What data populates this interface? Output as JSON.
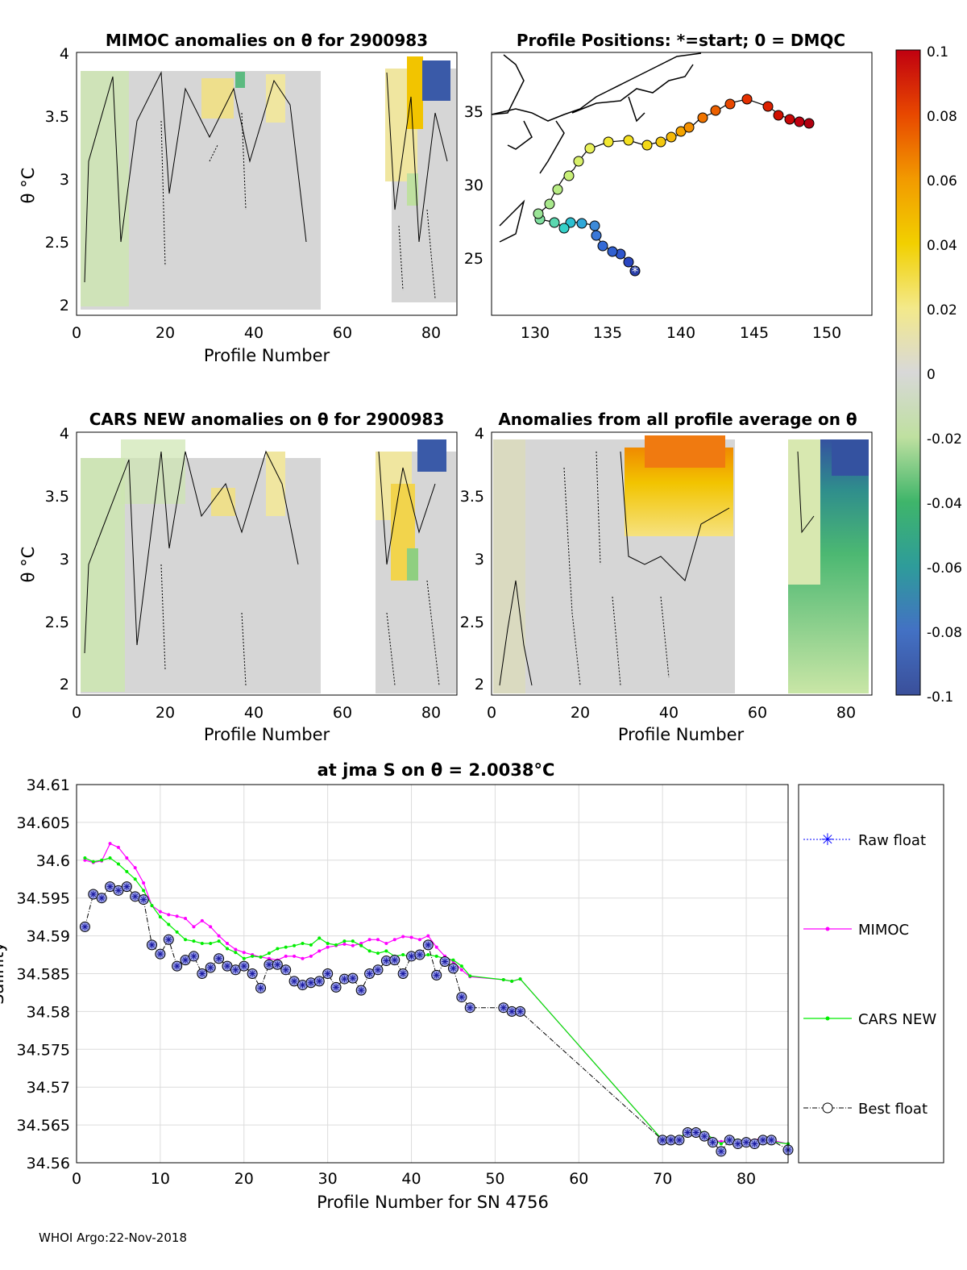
{
  "footer": "WHOI Argo:22-Nov-2018",
  "colors": {
    "mimoc": "#ff00ff",
    "cars": "#00ee00",
    "raw": "#0000ff",
    "best": "#000000",
    "grid": "#dcdcdc",
    "contour": "#000000"
  },
  "panels": {
    "mimoc": {
      "title": "MIMOC anomalies on θ  for 2900983",
      "xlabel": "Profile Number",
      "ylabel": "θ °C",
      "xticks": [
        "0",
        "20",
        "40",
        "60",
        "80"
      ],
      "yticks": [
        "2",
        "2.5",
        "3",
        "3.5",
        "4"
      ]
    },
    "positions": {
      "title": "Profile Positions: *=start; 0 = DMQC",
      "xticks": [
        "130",
        "135",
        "140",
        "145",
        "150"
      ],
      "yticks": [
        "25",
        "30",
        "35"
      ]
    },
    "cars": {
      "title": "CARS NEW anomalies on θ for 2900983",
      "xlabel": "Profile Number",
      "ylabel": "θ °C",
      "xticks": [
        "0",
        "20",
        "40",
        "60",
        "80"
      ],
      "yticks": [
        "2",
        "2.5",
        "3",
        "3.5",
        "4"
      ]
    },
    "profile_avg": {
      "title": "Anomalies from all profile average on θ",
      "xlabel": "Profile Number",
      "xticks": [
        "0",
        "20",
        "40",
        "60",
        "80"
      ],
      "yticks": [
        "2",
        "2.5",
        "3",
        "3.5",
        "4"
      ]
    },
    "colorbar": {
      "ticks": [
        "0.1",
        "0.08",
        "0.06",
        "0.04",
        "0.02",
        "0",
        "-0.02",
        "-0.04",
        "-0.06",
        "-0.08",
        "-0.1"
      ]
    }
  },
  "chart_data": [
    {
      "type": "line",
      "title": "at jma S on θ = 2.0038°C",
      "xlabel": "Profile Number for SN 4756",
      "ylabel": "Salinity",
      "xlim": [
        0,
        85
      ],
      "ylim": [
        34.56,
        34.61
      ],
      "xticks": [
        "0",
        "10",
        "20",
        "30",
        "40",
        "50",
        "60",
        "70",
        "80"
      ],
      "yticks": [
        "34.56",
        "34.565",
        "34.57",
        "34.575",
        "34.58",
        "34.585",
        "34.59",
        "34.595",
        "34.6",
        "34.605",
        "34.61"
      ],
      "legend": [
        "Raw float",
        "MIMOC",
        "CARS NEW",
        "Best float"
      ],
      "legend_position": "outside-right",
      "grid": true,
      "series": [
        {
          "name": "Best float",
          "x": [
            1,
            2,
            3,
            4,
            5,
            6,
            7,
            8,
            9,
            10,
            11,
            12,
            13,
            14,
            15,
            16,
            17,
            18,
            19,
            20,
            21,
            22,
            23,
            24,
            25,
            26,
            27,
            28,
            29,
            30,
            31,
            32,
            33,
            34,
            35,
            36,
            37,
            38,
            39,
            40,
            41,
            42,
            43,
            44,
            45,
            46,
            47,
            51,
            52,
            53,
            70,
            71,
            72,
            73,
            74,
            75,
            76,
            77,
            78,
            79,
            80,
            81,
            82,
            83,
            85
          ],
          "y": [
            34.5912,
            34.5955,
            34.595,
            34.5965,
            34.596,
            34.5965,
            34.5952,
            34.5948,
            34.5888,
            34.5876,
            34.5895,
            34.586,
            34.5868,
            34.5873,
            34.585,
            34.5858,
            34.587,
            34.586,
            34.5855,
            34.586,
            34.585,
            34.5831,
            34.5862,
            34.5862,
            34.5855,
            34.584,
            34.5835,
            34.5838,
            34.584,
            34.585,
            34.5832,
            34.5843,
            34.5844,
            34.5828,
            34.585,
            34.5855,
            34.5867,
            34.5868,
            34.585,
            34.5873,
            34.5875,
            34.5888,
            34.5848,
            34.5866,
            34.5857,
            34.5819,
            34.5805,
            34.5805,
            34.58,
            34.58,
            34.563,
            34.563,
            34.563,
            34.564,
            34.564,
            34.5635,
            34.5627,
            34.5615,
            34.563,
            34.5625,
            34.5627,
            34.5625,
            34.563,
            34.563,
            34.5617
          ]
        },
        {
          "name": "MIMOC",
          "x": [
            1,
            2,
            3,
            4,
            5,
            6,
            7,
            8,
            9,
            10,
            11,
            12,
            13,
            14,
            15,
            16,
            17,
            18,
            19,
            20,
            21,
            22,
            23,
            24,
            25,
            26,
            27,
            28,
            29,
            30,
            31,
            32,
            33,
            34,
            35,
            36,
            37,
            38,
            39,
            40,
            41,
            42,
            43,
            44,
            45,
            46,
            47,
            51,
            52,
            53,
            70,
            71,
            72,
            73,
            74,
            75,
            76,
            77,
            78,
            79,
            80,
            81,
            82,
            83,
            85
          ],
          "y": [
            34.6,
            34.5997,
            34.5999,
            34.6022,
            34.6017,
            34.6003,
            34.599,
            34.597,
            34.594,
            34.5932,
            34.5928,
            34.5926,
            34.5923,
            34.5912,
            34.592,
            34.5912,
            34.59,
            34.589,
            34.5882,
            34.5878,
            34.5875,
            34.5872,
            34.587,
            34.5868,
            34.5873,
            34.5873,
            34.587,
            34.5873,
            34.588,
            34.5885,
            34.5887,
            34.5889,
            34.5887,
            34.589,
            34.5895,
            34.5895,
            34.589,
            34.5895,
            34.5899,
            34.5898,
            34.5895,
            34.59,
            34.5885,
            34.5873,
            34.5866,
            34.5855,
            34.5846,
            34.5842,
            34.584,
            34.5843,
            34.563,
            34.563,
            34.5632,
            34.564,
            34.564,
            34.5638,
            34.563,
            34.5628,
            34.563,
            34.5628,
            34.563,
            34.563,
            34.5633,
            34.563,
            34.5625
          ]
        },
        {
          "name": "CARS NEW",
          "x": [
            1,
            2,
            3,
            4,
            5,
            6,
            7,
            8,
            9,
            10,
            11,
            12,
            13,
            14,
            15,
            16,
            17,
            18,
            19,
            20,
            21,
            22,
            23,
            24,
            25,
            26,
            27,
            28,
            29,
            30,
            31,
            32,
            33,
            34,
            35,
            36,
            37,
            38,
            39,
            40,
            41,
            42,
            43,
            44,
            45,
            46,
            47,
            51,
            52,
            53,
            70,
            71,
            72,
            73,
            74,
            75,
            76,
            77,
            78,
            79,
            80,
            81,
            82,
            83,
            85
          ],
          "y": [
            34.6003,
            34.5998,
            34.6,
            34.6003,
            34.5995,
            34.5985,
            34.5975,
            34.596,
            34.594,
            34.5925,
            34.5915,
            34.5905,
            34.5895,
            34.5893,
            34.589,
            34.589,
            34.5893,
            34.5883,
            34.5878,
            34.587,
            34.5873,
            34.5872,
            34.5877,
            34.5883,
            34.5885,
            34.5887,
            34.589,
            34.5888,
            34.5897,
            34.589,
            34.5888,
            34.5893,
            34.5893,
            34.5887,
            34.588,
            34.5877,
            34.588,
            34.5873,
            34.5875,
            34.5872,
            34.5873,
            34.5875,
            34.5873,
            34.587,
            34.5868,
            34.586,
            34.5847,
            34.5842,
            34.584,
            34.5843,
            34.563,
            34.563,
            34.5632,
            34.5642,
            34.5642,
            34.564,
            34.5632,
            34.5625,
            34.5632,
            34.563,
            34.5628,
            34.5625,
            34.563,
            34.5628,
            34.5625
          ]
        }
      ]
    }
  ]
}
